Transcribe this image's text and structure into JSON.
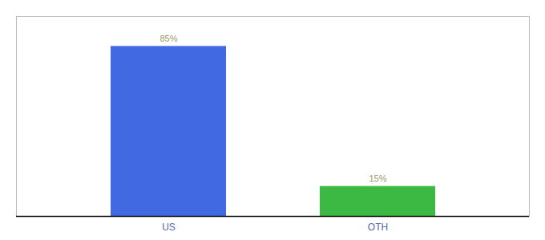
{
  "chart_data": {
    "type": "bar",
    "categories": [
      "US",
      "OTH"
    ],
    "values": [
      85,
      15
    ],
    "value_labels": [
      "85%",
      "15%"
    ],
    "colors": [
      "#4169E1",
      "#3CB943"
    ],
    "ylim": [
      0,
      100
    ],
    "data_labels": true,
    "tick_labels": "x"
  }
}
